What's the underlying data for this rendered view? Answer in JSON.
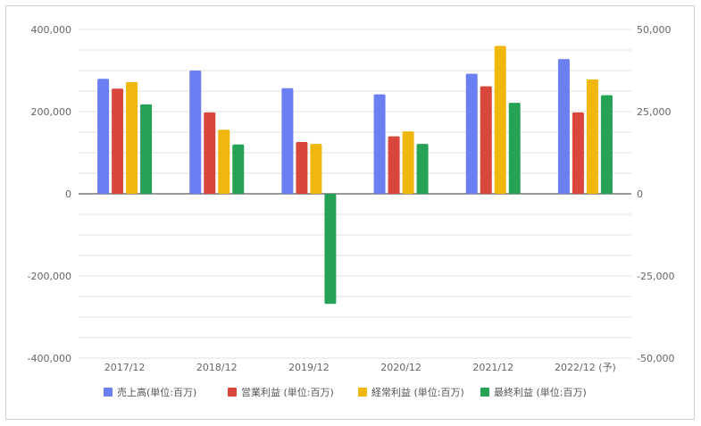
{
  "chart_data": {
    "type": "bar",
    "categories": [
      "2017/12",
      "2018/12",
      "2019/12",
      "2020/12",
      "2021/12",
      "2022/12 (予)"
    ],
    "series": [
      {
        "name": "売上高(単位:百万)",
        "axis": "left",
        "color": "#6a7ff1",
        "values": [
          280000,
          300000,
          257000,
          242000,
          292000,
          328000
        ]
      },
      {
        "name": "営業利益 (単位:百万)",
        "axis": "right",
        "color": "#d9473c",
        "values": [
          32000,
          24750,
          15750,
          17500,
          32700,
          24750
        ]
      },
      {
        "name": "経常利益 (単位:百万)",
        "axis": "right",
        "color": "#f0b80f",
        "values": [
          34000,
          19500,
          15200,
          19000,
          45000,
          34800
        ]
      },
      {
        "name": "最終利益 (単位:百万)",
        "axis": "right",
        "color": "#26a257",
        "values": [
          27200,
          15000,
          -33500,
          15200,
          27700,
          30000
        ]
      }
    ],
    "y_left": {
      "ylim": [
        -400000,
        400000
      ],
      "ticks": [
        "400,000",
        "200,000",
        "0",
        "-200,000",
        "-400,000"
      ]
    },
    "y_right": {
      "ylim": [
        -50000,
        50000
      ],
      "ticks": [
        "50,000",
        "25,000",
        "0",
        "-25,000",
        "-50,000"
      ]
    },
    "grid": true,
    "legend": "bottom"
  }
}
